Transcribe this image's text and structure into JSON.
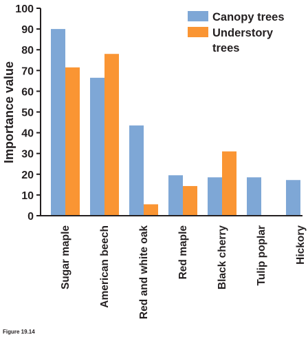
{
  "caption": "Figure 19.14",
  "colors": {
    "canopy": "#7ea7d6",
    "understory": "#fa9533",
    "axis": "#231f20"
  },
  "chart_data": {
    "type": "bar",
    "title": "",
    "xlabel": "",
    "ylabel": "Importance value",
    "ylim": [
      0,
      100
    ],
    "yticks": [
      0,
      10,
      20,
      30,
      40,
      50,
      60,
      70,
      80,
      90,
      100
    ],
    "grid": false,
    "legend_position": "top-right",
    "categories": [
      "Sugar maple",
      "American beech",
      "Red and white oak",
      "Red maple",
      "Black cherry",
      "Tulip poplar",
      "Hickory"
    ],
    "series": [
      {
        "name": "Canopy trees",
        "color": "#7ea7d6",
        "values": [
          90,
          66.5,
          43.5,
          19.5,
          18.5,
          18.5,
          17.2
        ]
      },
      {
        "name_lines": [
          "Understory",
          "trees"
        ],
        "color": "#fa9533",
        "values": [
          71.5,
          78,
          5.5,
          14.3,
          31,
          null,
          null
        ]
      }
    ]
  }
}
